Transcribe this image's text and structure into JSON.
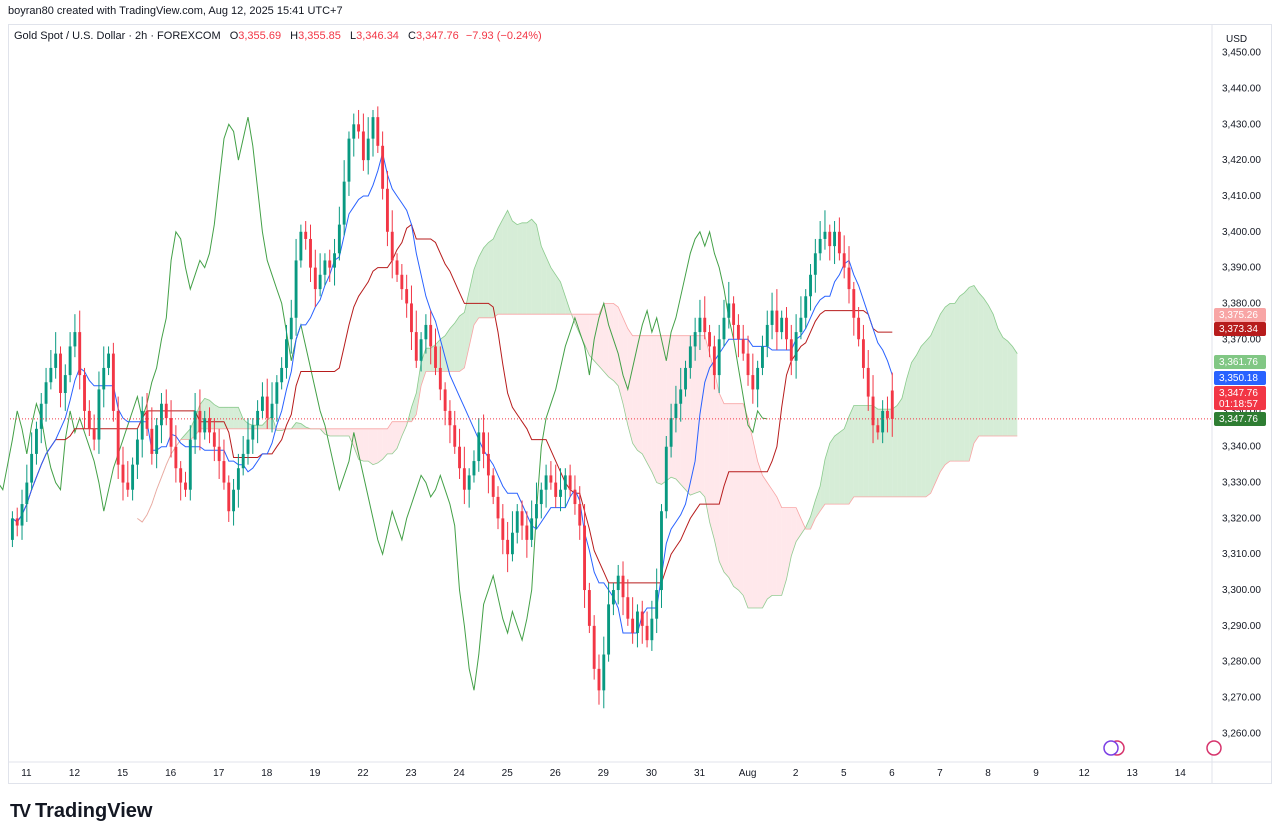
{
  "credit": "boyran80 created with TradingView.com, Aug 12, 2025 15:41 UTC+7",
  "legend": {
    "symbol": "Gold Spot / U.S. Dollar · 2h · FOREXCOM",
    "o_label": "O",
    "o_value": "3,355.69",
    "h_label": "H",
    "h_value": "3,355.85",
    "l_label": "L",
    "l_value": "3,346.34",
    "c_label": "C",
    "c_value": "3,347.76",
    "change": "−7.93 (−0.24%)"
  },
  "currency": "USD",
  "brand": "TradingView",
  "colors": {
    "up": "#089981",
    "down": "#f23645",
    "tenkan": "#2962ff",
    "kijun": "#b71c1c",
    "chikou": "#43a047",
    "cloud_bull": "#a5d6a7",
    "cloud_bear": "#ffcdd2",
    "lead1": "#4caf50",
    "lead2": "#f8a5a5"
  },
  "chart_data": {
    "type": "candlestick",
    "ylim": [
      3252,
      3458
    ],
    "y_ticks": [
      3260,
      3270,
      3280,
      3290,
      3300,
      3310,
      3320,
      3330,
      3340,
      3350,
      3360,
      3370,
      3380,
      3390,
      3400,
      3410,
      3420,
      3430,
      3440,
      3450
    ],
    "y_tick_labels": [
      "3,260.00",
      "3,270.00",
      "3,280.00",
      "3,290.00",
      "3,300.00",
      "3,310.00",
      "3,320.00",
      "3,330.00",
      "3,340.00",
      "3,350.00",
      "3,360.00",
      "3,370.00",
      "3,380.00",
      "3,390.00",
      "3,400.00",
      "3,410.00",
      "3,420.00",
      "3,430.00",
      "3,440.00",
      "3,450.00"
    ],
    "x_labels": [
      "11",
      "12",
      "15",
      "16",
      "17",
      "18",
      "19",
      "22",
      "23",
      "24",
      "25",
      "26",
      "29",
      "30",
      "31",
      "Aug",
      "2",
      "5",
      "6",
      "7",
      "8",
      "9",
      "12",
      "13",
      "14"
    ],
    "x_label_bars": [
      0,
      10,
      20,
      30,
      40,
      50,
      60,
      70,
      80,
      90,
      100,
      110,
      120,
      130,
      140,
      150,
      160,
      170,
      180,
      190,
      200,
      210,
      220,
      230,
      240
    ],
    "close_series": [
      3320,
      3318,
      3324,
      3330,
      3338,
      3345,
      3352,
      3358,
      3362,
      3366,
      3355,
      3360,
      3368,
      3372,
      3360,
      3350,
      3345,
      3342,
      3356,
      3362,
      3366,
      3350,
      3335,
      3330,
      3328,
      3335,
      3342,
      3350,
      3345,
      3338,
      3346,
      3352,
      3348,
      3340,
      3334,
      3330,
      3328,
      3342,
      3350,
      3344,
      3348,
      3344,
      3340,
      3336,
      3330,
      3322,
      3328,
      3334,
      3338,
      3342,
      3346,
      3350,
      3354,
      3348,
      3352,
      3358,
      3362,
      3370,
      3376,
      3392,
      3400,
      3398,
      3390,
      3384,
      3388,
      3392,
      3390,
      3394,
      3402,
      3414,
      3426,
      3430,
      3428,
      3420,
      3426,
      3432,
      3424,
      3412,
      3400,
      3392,
      3388,
      3384,
      3380,
      3372,
      3364,
      3370,
      3374,
      3368,
      3362,
      3356,
      3350,
      3346,
      3340,
      3334,
      3328,
      3332,
      3336,
      3344,
      3338,
      3332,
      3326,
      3320,
      3314,
      3310,
      3316,
      3322,
      3318,
      3314,
      3320,
      3324,
      3328,
      3332,
      3330,
      3326,
      3328,
      3332,
      3328,
      3324,
      3318,
      3300,
      3290,
      3278,
      3272,
      3282,
      3296,
      3300,
      3304,
      3298,
      3292,
      3288,
      3294,
      3290,
      3286,
      3292,
      3300,
      3322,
      3340,
      3348,
      3352,
      3356,
      3362,
      3368,
      3372,
      3376,
      3372,
      3368,
      3360,
      3370,
      3376,
      3380,
      3374,
      3370,
      3366,
      3360,
      3356,
      3362,
      3368,
      3374,
      3378,
      3372,
      3376,
      3370,
      3364,
      3372,
      3376,
      3382,
      3388,
      3394,
      3398,
      3400,
      3396,
      3400,
      3394,
      3390,
      3384,
      3376,
      3370,
      3362,
      3354,
      3346,
      3344,
      3350,
      3348,
      3347.76
    ],
    "open_series": [
      3314,
      3320,
      3318,
      3324,
      3330,
      3338,
      3345,
      3352,
      3358,
      3362,
      3366,
      3355,
      3360,
      3368,
      3372,
      3360,
      3350,
      3345,
      3342,
      3356,
      3362,
      3366,
      3350,
      3335,
      3330,
      3328,
      3335,
      3342,
      3350,
      3345,
      3338,
      3346,
      3352,
      3348,
      3340,
      3334,
      3330,
      3328,
      3342,
      3350,
      3344,
      3348,
      3344,
      3340,
      3336,
      3330,
      3322,
      3328,
      3334,
      3338,
      3342,
      3346,
      3350,
      3354,
      3348,
      3352,
      3358,
      3362,
      3370,
      3376,
      3392,
      3400,
      3398,
      3390,
      3384,
      3388,
      3392,
      3390,
      3394,
      3402,
      3414,
      3426,
      3430,
      3428,
      3420,
      3426,
      3432,
      3424,
      3412,
      3400,
      3392,
      3388,
      3384,
      3380,
      3372,
      3364,
      3370,
      3374,
      3368,
      3362,
      3356,
      3350,
      3346,
      3340,
      3334,
      3328,
      3332,
      3336,
      3344,
      3338,
      3332,
      3326,
      3320,
      3314,
      3310,
      3316,
      3322,
      3318,
      3314,
      3320,
      3324,
      3328,
      3332,
      3330,
      3326,
      3328,
      3332,
      3328,
      3324,
      3318,
      3300,
      3290,
      3278,
      3272,
      3282,
      3296,
      3300,
      3304,
      3298,
      3292,
      3288,
      3294,
      3290,
      3286,
      3292,
      3300,
      3322,
      3340,
      3348,
      3352,
      3356,
      3362,
      3368,
      3372,
      3376,
      3372,
      3368,
      3360,
      3370,
      3376,
      3380,
      3374,
      3370,
      3366,
      3360,
      3356,
      3362,
      3368,
      3374,
      3378,
      3372,
      3376,
      3370,
      3364,
      3372,
      3376,
      3382,
      3388,
      3394,
      3398,
      3400,
      3396,
      3400,
      3394,
      3390,
      3384,
      3376,
      3370,
      3362,
      3354,
      3346,
      3344,
      3350,
      3355.69
    ],
    "last_bar": {
      "open": 3355.69,
      "high": 3355.85,
      "low": 3346.34,
      "close": 3347.76
    },
    "price_tags": [
      {
        "label": "3,375.26",
        "value": 3375.26,
        "color": "#f8a5a5"
      },
      {
        "label": "3,373.34",
        "value": 3373.34,
        "color": "#b71c1c"
      },
      {
        "label": "3,361.76",
        "value": 3361.76,
        "color": "#81c784"
      },
      {
        "label": "3,350.18",
        "value": 3350.18,
        "color": "#2962ff"
      },
      {
        "label": "3,347.76",
        "value": 3347.76,
        "color": "#f23645",
        "sub": "01:18:57"
      },
      {
        "label": "3,347.76",
        "value": 3347.76,
        "color": "#2e7d32"
      }
    ]
  }
}
